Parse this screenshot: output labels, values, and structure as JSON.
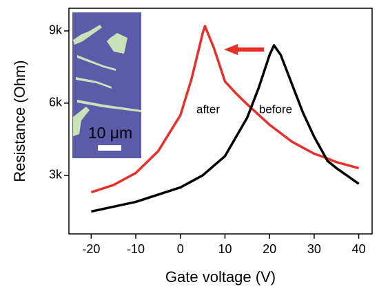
{
  "chart_data": {
    "type": "line",
    "xlabel": "Gate voltage (V)",
    "ylabel": "Resistance (Ohm)",
    "xlim": [
      -25,
      43
    ],
    "xticks": [
      -20,
      -10,
      0,
      10,
      20,
      30,
      40
    ],
    "ylim": [
      570,
      9940
    ],
    "yticks": [
      {
        "value": 3000,
        "label": "3k"
      },
      {
        "value": 6000,
        "label": "6k"
      },
      {
        "value": 9000,
        "label": "9k"
      }
    ],
    "annotation": "10 μm",
    "series": [
      {
        "name": "after",
        "color": "#e8302a",
        "x": [
          -20,
          -15,
          -10,
          -5,
          0,
          2.5,
          5,
          5.5,
          7.5,
          10,
          12.5,
          15,
          20,
          25,
          30,
          33,
          35,
          40
        ],
        "values": [
          2300,
          2600,
          3100,
          4000,
          5500,
          7000,
          8900,
          9200,
          8300,
          6900,
          6400,
          5950,
          5100,
          4400,
          3900,
          3700,
          3550,
          3300
        ]
      },
      {
        "name": "before",
        "color": "#000000",
        "x": [
          -20,
          -10,
          0,
          5,
          10,
          15,
          17.5,
          20,
          21,
          22.5,
          25,
          27.5,
          30,
          33,
          35,
          40
        ],
        "values": [
          1500,
          1900,
          2500,
          3000,
          3800,
          5400,
          6600,
          8000,
          8400,
          8000,
          6800,
          5600,
          4600,
          3600,
          3300,
          2650
        ]
      }
    ]
  }
}
